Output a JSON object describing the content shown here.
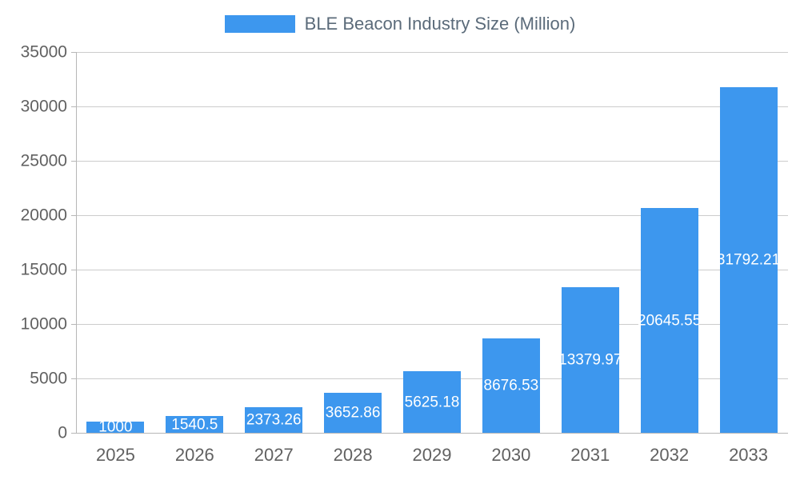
{
  "chart_data": {
    "type": "bar",
    "title": "BLE Beacon Industry Size (Million)",
    "categories": [
      "2025",
      "2026",
      "2027",
      "2028",
      "2029",
      "2030",
      "2031",
      "2032",
      "2033"
    ],
    "values": [
      1000,
      1540.5,
      2373.26,
      3652.86,
      5625.18,
      8676.53,
      13379.97,
      20645.55,
      31792.21
    ],
    "value_labels": [
      "1000",
      "1540.5",
      "2373.26",
      "3652.86",
      "5625.18",
      "8676.53",
      "13379.97",
      "20645.55",
      "31792.21"
    ],
    "xlabel": "",
    "ylabel": "",
    "ylim": [
      0,
      35000
    ],
    "yticks": [
      0,
      5000,
      10000,
      15000,
      20000,
      25000,
      30000,
      35000
    ],
    "grid": true,
    "legend_position": "top",
    "bar_color": "#3d97ee",
    "label_color": "#ffffff",
    "axis_label_color": "#616161",
    "title_color": "#5b6b7a",
    "grid_color": "#cccccc",
    "axis_line_color": "#b7b7b7",
    "background": "#ffffff"
  }
}
